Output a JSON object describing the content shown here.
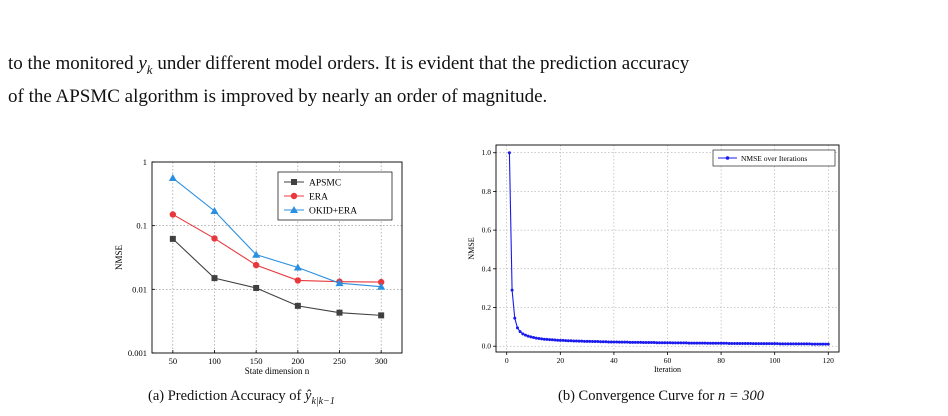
{
  "paragraph": {
    "line1_pre": "to the monitored ",
    "line1_var": "y",
    "line1_sub": "k",
    "line1_post": " under different model orders. It is evident that the prediction accuracy",
    "line2": "of the APSMC algorithm is improved by nearly an order of magnitude."
  },
  "captions": {
    "a_prefix": "(a) Prediction Accuracy of ",
    "a_math": "ŷ",
    "a_sub": "k|k−1",
    "b_prefix": "(b) Convergence Curve for ",
    "b_math": "n = 300"
  },
  "chart_data": [
    {
      "type": "line",
      "xlabel": "State dimension n",
      "ylabel": "NMSE",
      "yscale": "log",
      "ylim": [
        0.001,
        1
      ],
      "xlim": [
        25,
        325
      ],
      "x": [
        50,
        100,
        150,
        200,
        250,
        300
      ],
      "xticks": [
        "50",
        "100",
        "150",
        "200",
        "250",
        "300"
      ],
      "yticks": [
        "0.001",
        "0.01",
        "0.1",
        "1"
      ],
      "grid": true,
      "legend_position": "top-right",
      "series": [
        {
          "name": "APSMC",
          "color": "#404040",
          "marker": "square",
          "values": [
            0.062,
            0.015,
            0.0105,
            0.0055,
            0.0043,
            0.0039
          ]
        },
        {
          "name": "ERA",
          "color": "#e8383d",
          "marker": "circle",
          "values": [
            0.15,
            0.063,
            0.024,
            0.0138,
            0.0132,
            0.013
          ]
        },
        {
          "name": "OKID+ERA",
          "color": "#2a8fe0",
          "marker": "triangle",
          "values": [
            0.56,
            0.17,
            0.035,
            0.022,
            0.0125,
            0.011
          ]
        }
      ]
    },
    {
      "type": "line",
      "xlabel": "Iteration",
      "ylabel": "NMSE",
      "xlim": [
        -4,
        124
      ],
      "ylim": [
        -0.03,
        1.04
      ],
      "xticks": [
        "0",
        "20",
        "40",
        "60",
        "80",
        "100",
        "120"
      ],
      "yticks": [
        "0.0",
        "0.2",
        "0.4",
        "0.6",
        "0.8",
        "1.0"
      ],
      "grid": true,
      "legend_position": "top-right",
      "series": [
        {
          "name": "NMSE over Iterations",
          "color": "#1a1aee",
          "marker": "dot",
          "x_start": 1,
          "x_end": 120,
          "values": [
            1.0,
            0.29,
            0.145,
            0.095,
            0.075,
            0.064,
            0.057,
            0.052,
            0.048,
            0.045,
            0.042,
            0.04,
            0.038,
            0.036,
            0.035,
            0.034,
            0.033,
            0.032,
            0.031,
            0.03,
            0.03,
            0.029,
            0.028,
            0.028,
            0.027,
            0.027,
            0.026,
            0.026,
            0.025,
            0.025,
            0.025,
            0.024,
            0.024,
            0.024,
            0.023,
            0.023,
            0.023,
            0.022,
            0.022,
            0.022,
            0.022,
            0.021,
            0.021,
            0.021,
            0.021,
            0.02,
            0.02,
            0.02,
            0.02,
            0.02,
            0.019,
            0.019,
            0.019,
            0.019,
            0.019,
            0.018,
            0.018,
            0.018,
            0.018,
            0.018,
            0.018,
            0.017,
            0.017,
            0.017,
            0.017,
            0.017,
            0.017,
            0.016,
            0.016,
            0.016,
            0.016,
            0.016,
            0.016,
            0.016,
            0.015,
            0.015,
            0.015,
            0.015,
            0.015,
            0.015,
            0.015,
            0.015,
            0.014,
            0.014,
            0.014,
            0.014,
            0.014,
            0.014,
            0.014,
            0.014,
            0.014,
            0.013,
            0.013,
            0.013,
            0.013,
            0.013,
            0.013,
            0.013,
            0.013,
            0.013,
            0.013,
            0.012,
            0.012,
            0.012,
            0.012,
            0.012,
            0.012,
            0.012,
            0.012,
            0.012,
            0.012,
            0.012,
            0.012,
            0.011,
            0.011,
            0.011,
            0.011,
            0.011,
            0.011,
            0.011
          ]
        }
      ]
    }
  ]
}
